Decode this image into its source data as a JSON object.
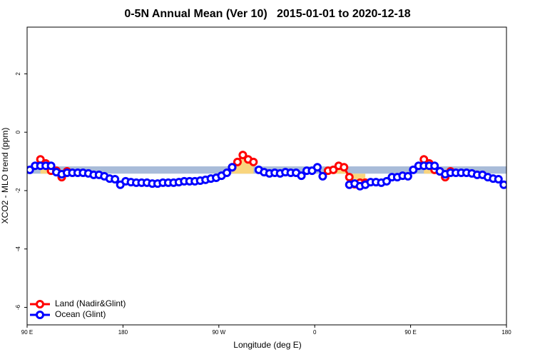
{
  "chart_data": {
    "type": "line",
    "title": "0-5N Annual Mean (Ver 10)   2015-01-01 to 2020-12-18",
    "x_label": "Longitude (deg E)",
    "y_label": "XCO2 - MLO trend (ppm)",
    "xlim": [
      90,
      540
    ],
    "xticks": [
      {
        "value": 90,
        "label": "90 E"
      },
      180,
      {
        "value": 270,
        "label": "90 W"
      },
      {
        "value": 360,
        "label": "0"
      },
      {
        "value": 450,
        "label": "90 E"
      },
      {
        "value": 540,
        "label": "180"
      }
    ],
    "ylim": [
      -6.6,
      3.6
    ],
    "yticks": [
      -6,
      -4,
      -2,
      0,
      2
    ],
    "band": [
      -1.42,
      -1.17
    ],
    "band_color": "#a9bcd9",
    "fill_color": "#f9d57e",
    "legend": "bottom-left",
    "x": [
      92.5,
      97.5,
      102.5,
      107.5,
      112.5,
      117.5,
      122.5,
      127.5,
      132.5,
      137.5,
      142.5,
      147.5,
      152.5,
      157.5,
      162.5,
      167.5,
      172.5,
      177.5,
      182.5,
      187.5,
      192.5,
      197.5,
      202.5,
      207.5,
      212.5,
      217.5,
      222.5,
      227.5,
      232.5,
      237.5,
      242.5,
      247.5,
      252.5,
      257.5,
      262.5,
      267.5,
      272.5,
      277.5,
      282.5,
      287.5,
      292.5,
      297.5,
      302.5,
      307.5,
      312.5,
      317.5,
      322.5,
      327.5,
      332.5,
      337.5,
      342.5,
      347.5,
      352.5,
      357.5,
      362.5,
      367.5,
      372.5,
      377.5,
      382.5,
      387.5,
      392.5,
      397.5,
      402.5,
      407.5,
      412.5,
      417.5,
      422.5,
      427.5,
      432.5,
      437.5,
      442.5,
      447.5,
      452.5,
      457.5,
      462.5,
      467.5,
      472.5,
      477.5,
      482.5,
      487.5,
      492.5,
      497.5,
      502.5,
      507.5,
      512.5,
      517.5,
      522.5,
      527.5,
      532.5,
      537.5
    ],
    "series": [
      {
        "name": "Land (Nadir&Glint)",
        "color": "#ff0000",
        "fill": true,
        "values": [
          null,
          null,
          -0.93,
          -1.07,
          -1.32,
          -1.32,
          -1.54,
          -1.34,
          null,
          null,
          null,
          null,
          null,
          null,
          null,
          null,
          null,
          null,
          null,
          null,
          null,
          null,
          null,
          null,
          null,
          null,
          null,
          null,
          null,
          null,
          null,
          null,
          null,
          null,
          null,
          null,
          null,
          null,
          -1.2,
          -1.02,
          -0.78,
          -0.93,
          -1.02,
          null,
          null,
          null,
          null,
          null,
          null,
          null,
          null,
          null,
          null,
          null,
          null,
          null,
          -1.32,
          -1.29,
          -1.15,
          -1.2,
          -1.54,
          -1.78,
          -1.73,
          -1.73,
          null,
          null,
          null,
          null,
          null,
          null,
          null,
          null,
          null,
          null,
          -0.93,
          -1.07,
          -1.29,
          -1.34,
          -1.54,
          -1.34,
          null,
          null,
          null,
          null,
          null,
          null,
          null,
          null,
          null,
          null
        ]
      },
      {
        "name": "Ocean (Glint)",
        "color": "#0000ff",
        "fill": false,
        "values": [
          -1.29,
          -1.15,
          -1.15,
          -1.15,
          -1.15,
          -1.37,
          -1.44,
          -1.39,
          -1.39,
          -1.39,
          -1.39,
          -1.41,
          -1.46,
          -1.46,
          -1.51,
          -1.59,
          -1.61,
          -1.8,
          -1.68,
          -1.71,
          -1.73,
          -1.73,
          -1.73,
          -1.76,
          -1.76,
          -1.73,
          -1.73,
          -1.73,
          -1.71,
          -1.68,
          -1.68,
          -1.68,
          -1.66,
          -1.63,
          -1.59,
          -1.56,
          -1.49,
          -1.39,
          -1.2,
          null,
          null,
          null,
          null,
          -1.29,
          -1.37,
          -1.41,
          -1.39,
          -1.41,
          -1.37,
          -1.39,
          -1.39,
          -1.49,
          -1.32,
          -1.32,
          -1.2,
          -1.51,
          null,
          null,
          null,
          null,
          -1.8,
          -1.76,
          -1.85,
          -1.8,
          -1.71,
          -1.71,
          -1.73,
          -1.68,
          -1.54,
          -1.54,
          -1.49,
          -1.51,
          -1.29,
          -1.15,
          -1.15,
          -1.15,
          -1.15,
          -1.34,
          -1.44,
          -1.39,
          -1.39,
          -1.39,
          -1.39,
          -1.41,
          -1.46,
          -1.46,
          -1.54,
          -1.59,
          -1.61,
          -1.8
        ]
      }
    ]
  }
}
